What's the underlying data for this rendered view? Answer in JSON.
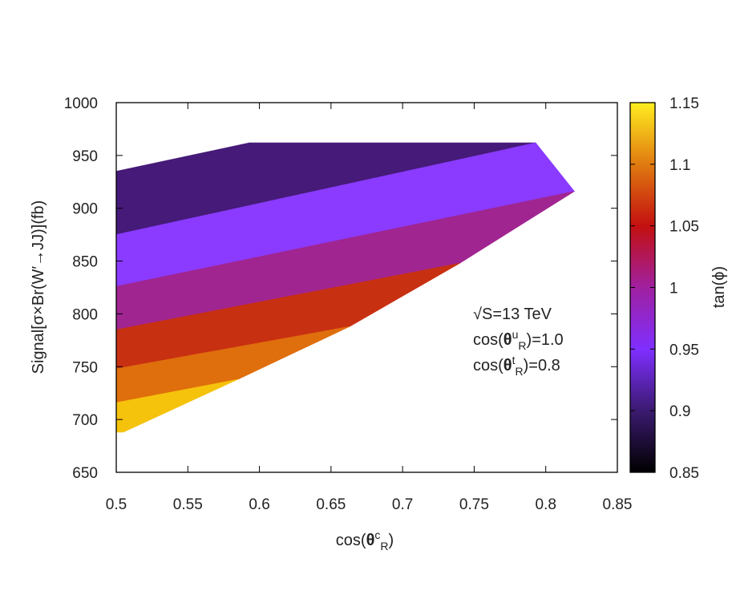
{
  "chart_data": {
    "type": "area",
    "xlabel": "cos(θᶜR)",
    "xlabel_parts": {
      "base": "cos(",
      "greek": "θ",
      "sup": "c",
      "sub": "R",
      "close": ")"
    },
    "ylabel": "Signal[σ×Br(W′→JJ)](fb)",
    "xlim": [
      0.5,
      0.85
    ],
    "ylim": [
      650,
      1000
    ],
    "x_ticks": [
      "0.5",
      "0.55",
      "0.6",
      "0.65",
      "0.7",
      "0.75",
      "0.8",
      "0.85"
    ],
    "y_ticks": [
      "650",
      "700",
      "750",
      "800",
      "850",
      "900",
      "950",
      "1000"
    ],
    "colorbar": {
      "label": "tan(ϕ)",
      "range": [
        0.85,
        1.15
      ],
      "ticks": [
        "0.85",
        "0.9",
        "0.95",
        "1",
        "1.05",
        "1.1",
        "1.15"
      ],
      "colormap": [
        "#000000",
        "#3b1a70",
        "#7f2fff",
        "#a020a0",
        "#c31010",
        "#e07a10",
        "#ffee20"
      ]
    },
    "annotations": [
      {
        "text_parts": {
          "root": "√",
          "rest": "S=13 TeV"
        }
      },
      {
        "text_parts": {
          "base": "cos(",
          "greek": "θ",
          "sup": "u",
          "sub": "R",
          "close": ")=1.0"
        }
      },
      {
        "text_parts": {
          "base": "cos(",
          "greek": "θ",
          "sup": "t",
          "sub": "R",
          "close": ")=0.8"
        }
      }
    ],
    "bands": [
      {
        "color": "#451a78",
        "polygon": [
          [
            0.5,
            935
          ],
          [
            0.593,
            962
          ],
          [
            0.793,
            962
          ],
          [
            0.5,
            875
          ]
        ]
      },
      {
        "color": "#8a3bff",
        "polygon": [
          [
            0.5,
            875
          ],
          [
            0.793,
            962
          ],
          [
            0.82,
            916
          ],
          [
            0.5,
            826
          ]
        ]
      },
      {
        "color": "#a02590",
        "polygon": [
          [
            0.5,
            826
          ],
          [
            0.82,
            916
          ],
          [
            0.74,
            848
          ],
          [
            0.5,
            785
          ]
        ]
      },
      {
        "color": "#c83012",
        "polygon": [
          [
            0.5,
            785
          ],
          [
            0.74,
            848
          ],
          [
            0.663,
            788
          ],
          [
            0.5,
            748
          ]
        ]
      },
      {
        "color": "#df6e0c",
        "polygon": [
          [
            0.5,
            748
          ],
          [
            0.663,
            788
          ],
          [
            0.585,
            738
          ],
          [
            0.5,
            716
          ]
        ]
      },
      {
        "color": "#f5c20c",
        "polygon": [
          [
            0.5,
            716
          ],
          [
            0.585,
            738
          ],
          [
            0.505,
            688
          ],
          [
            0.5,
            688
          ]
        ]
      }
    ],
    "grid": false,
    "legend": "none"
  }
}
